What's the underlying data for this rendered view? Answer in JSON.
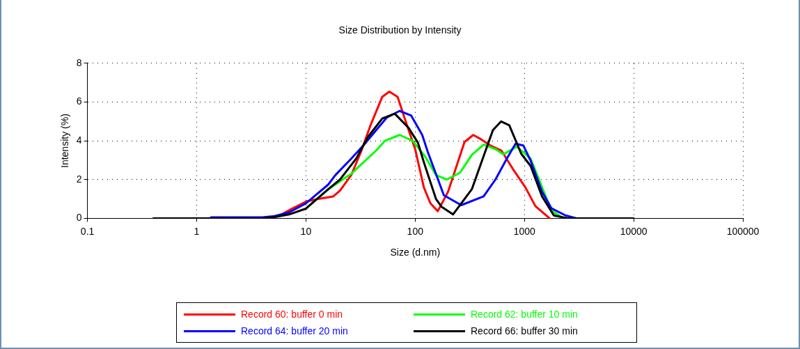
{
  "chart_data": {
    "type": "line",
    "title": "Size Distribution by Intensity",
    "xlabel": "Size (d.nm)",
    "ylabel": "Intensity (%)",
    "log": "x",
    "xlim": [
      0.1,
      100000
    ],
    "xticks": [
      0.1,
      1,
      10,
      100,
      1000,
      10000,
      100000
    ],
    "ylim": [
      0,
      8
    ],
    "yticks": [
      0,
      2,
      4,
      6,
      8
    ],
    "grid": true,
    "legend": "bottom",
    "marker": "none",
    "line_style": "solid",
    "series": [
      {
        "name": "Record 60: buffer 0 min",
        "color": "#ff0000",
        "x": [
          6,
          7.2,
          10.2,
          13,
          17.8,
          20.5,
          26,
          32,
          39,
          50,
          58,
          69,
          83,
          100,
          120,
          138,
          161,
          200,
          283,
          340,
          403,
          490,
          615,
          800,
          1020,
          1260,
          1700
        ],
        "values": [
          0.2,
          0.45,
          0.88,
          1.0,
          1.13,
          1.43,
          2.23,
          3.45,
          4.8,
          6.27,
          6.54,
          6.27,
          4.9,
          3.57,
          1.6,
          0.77,
          0.37,
          1.37,
          3.94,
          4.3,
          4.07,
          3.75,
          3.5,
          2.47,
          1.6,
          0.63,
          0
        ]
      },
      {
        "name": "Record 62: buffer 10 min",
        "color": "#00ff00",
        "x": [
          10,
          16,
          26,
          44,
          53,
          72,
          95,
          123,
          155,
          195,
          257,
          330,
          423,
          543,
          640,
          850,
          1140,
          1450,
          1770,
          2200
        ],
        "values": [
          0.5,
          1.5,
          2.3,
          3.5,
          4.0,
          4.3,
          4.0,
          3.2,
          2.23,
          2.0,
          2.35,
          3.27,
          3.8,
          3.57,
          3.3,
          3.7,
          3.08,
          1.6,
          0.4,
          0.05
        ]
      },
      {
        "name": "Record 64: buffer 20 min",
        "color": "#0000ff",
        "x": [
          1.35,
          2,
          4,
          5,
          7,
          10,
          16,
          18.6,
          26,
          34,
          44,
          55,
          72,
          92,
          116,
          130,
          183,
          264,
          423,
          543,
          690,
          830,
          980,
          1140,
          1450,
          1770,
          2380,
          3000
        ],
        "values": [
          0.05,
          0.05,
          0.05,
          0.1,
          0.3,
          0.77,
          1.74,
          2.23,
          3.08,
          3.8,
          4.55,
          5.2,
          5.54,
          5.3,
          4.3,
          3.45,
          1.19,
          0.68,
          1.13,
          2.0,
          3.08,
          3.85,
          3.75,
          2.97,
          1.37,
          0.51,
          0.15,
          0
        ]
      },
      {
        "name": "Record 66: buffer 30 min",
        "color": "#000000",
        "x": [
          0.4,
          1,
          2,
          4,
          5,
          7,
          10,
          16,
          20.5,
          29,
          37,
          50,
          65,
          87,
          106,
          120,
          155,
          174,
          222,
          330,
          423,
          515,
          612,
          727,
          935,
          1140,
          1450,
          1860,
          2500,
          5000,
          10000
        ],
        "values": [
          0,
          0,
          0,
          0,
          0.05,
          0.2,
          0.5,
          1.5,
          2.0,
          3.1,
          4.2,
          5.15,
          5.4,
          4.67,
          3.9,
          2.9,
          1.0,
          0.6,
          0.2,
          1.5,
          3.2,
          4.55,
          5.0,
          4.8,
          3.33,
          2.7,
          1.13,
          0.15,
          0,
          0,
          0
        ]
      }
    ]
  }
}
